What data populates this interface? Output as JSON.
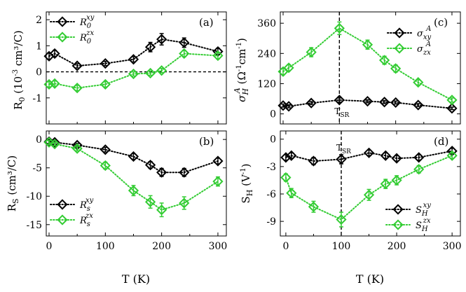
{
  "figure": {
    "x_label": "T (K)",
    "colors": {
      "black_series": "#000000",
      "green_series": "#33cc33"
    }
  },
  "chart_data": [
    {
      "id": "a",
      "type": "line",
      "panel_label": "(a)",
      "ylabel_text": "R",
      "ylabel_sub": "0",
      "ylabel_rest": " (10",
      "ylabel_sup": "-3",
      "ylabel_end": " cm³/C)",
      "xlim": [
        -5,
        315
      ],
      "ylim": [
        -2.0,
        2.3
      ],
      "xticks": [
        0,
        100,
        200,
        300
      ],
      "xtick_labels": [],
      "yticks": [
        -2,
        -1,
        0,
        1,
        2
      ],
      "ytick_labels": [
        "",
        "-1",
        "0",
        "1",
        "2"
      ],
      "zero_line": true,
      "legend": {
        "position": "top-left",
        "entries": [
          {
            "base": "R",
            "sub": "0",
            "sup": "xy"
          },
          {
            "base": "R",
            "sub": "0",
            "sup": "zx"
          }
        ]
      },
      "series": [
        {
          "name": "R0 xy",
          "color": "#000000",
          "x": [
            0,
            10,
            50,
            100,
            150,
            180,
            200,
            240,
            300
          ],
          "y": [
            0.6,
            0.7,
            0.23,
            0.32,
            0.48,
            0.95,
            1.25,
            1.12,
            0.78
          ],
          "err": [
            0.12,
            0.12,
            0.08,
            0.08,
            0.1,
            0.18,
            0.22,
            0.18,
            0.12
          ]
        },
        {
          "name": "R0 zx",
          "color": "#33cc33",
          "x": [
            0,
            10,
            50,
            100,
            150,
            180,
            200,
            240,
            300
          ],
          "y": [
            -0.48,
            -0.45,
            -0.62,
            -0.48,
            -0.08,
            -0.05,
            0.05,
            0.7,
            0.62
          ],
          "err": [
            0.1,
            0.1,
            0.1,
            0.1,
            0.08,
            0.08,
            0.08,
            0.12,
            0.12
          ]
        }
      ]
    },
    {
      "id": "b",
      "type": "line",
      "panel_label": "(b)",
      "ylabel_text": "R",
      "ylabel_sub": "S",
      "ylabel_rest": " (cm³/C)",
      "ylabel_sup": "",
      "ylabel_end": "",
      "xlim": [
        -5,
        315
      ],
      "ylim": [
        -17.0,
        1.5
      ],
      "xticks": [
        0,
        100,
        200,
        300
      ],
      "xtick_labels": [
        "0",
        "100",
        "200",
        "300"
      ],
      "yticks": [
        0,
        -5,
        -10,
        -15
      ],
      "ytick_labels": [
        "0",
        "-5",
        "-10",
        "-15"
      ],
      "zero_line": false,
      "legend": {
        "position": "bottom-left",
        "entries": [
          {
            "base": "R",
            "sub": "s",
            "sup": "xy"
          },
          {
            "base": "R",
            "sub": "s",
            "sup": "zx"
          }
        ]
      },
      "series": [
        {
          "name": "Rs xy",
          "color": "#000000",
          "x": [
            0,
            10,
            50,
            100,
            150,
            180,
            200,
            240,
            300
          ],
          "y": [
            -0.4,
            -0.5,
            -1.0,
            -1.8,
            -3.0,
            -4.5,
            -5.8,
            -5.8,
            -3.8
          ],
          "err": [
            0.3,
            0.3,
            0.3,
            0.4,
            0.5,
            0.6,
            0.7,
            0.7,
            0.5
          ]
        },
        {
          "name": "Rs zx",
          "color": "#33cc33",
          "x": [
            0,
            10,
            50,
            100,
            150,
            180,
            200,
            240,
            300
          ],
          "y": [
            -0.5,
            -0.8,
            -1.6,
            -4.6,
            -9.0,
            -11.0,
            -12.4,
            -11.2,
            -7.4
          ],
          "err": [
            0.3,
            0.3,
            0.4,
            0.6,
            0.9,
            1.1,
            1.2,
            1.1,
            0.8
          ]
        }
      ]
    },
    {
      "id": "c",
      "type": "line",
      "panel_label": "(c)",
      "ylabel_text": "σ",
      "ylabel_sub": "H",
      "ylabel_sup": "A",
      "ylabel_rest": " (Ω",
      "ylabel_sup2": "-1",
      "ylabel_end": "cm",
      "ylabel_sup3": "-1",
      "ylabel_close": ")",
      "xlim": [
        -5,
        315
      ],
      "ylim": [
        -40,
        405
      ],
      "xticks": [
        0,
        100,
        200,
        300
      ],
      "xtick_labels": [],
      "yticks": [
        0,
        120,
        240,
        360
      ],
      "ytick_labels": [
        "0",
        "120",
        "240",
        "360"
      ],
      "vline_x": 100,
      "vline_label": "T",
      "vline_sub": "SR",
      "legend": {
        "position": "top-right",
        "entries": [
          {
            "base": "σ",
            "sub": "xy",
            "sup": "A"
          },
          {
            "base": "σ",
            "sub": "zx",
            "sup": "A"
          }
        ]
      },
      "series": [
        {
          "name": "sigma xy",
          "color": "#000000",
          "x": [
            0,
            10,
            50,
            100,
            150,
            180,
            200,
            240,
            300
          ],
          "y": [
            33,
            30,
            43,
            55,
            50,
            47,
            45,
            35,
            22
          ],
          "err": [
            6,
            6,
            6,
            8,
            6,
            6,
            6,
            6,
            5
          ]
        },
        {
          "name": "sigma zx",
          "color": "#33cc33",
          "x": [
            0,
            10,
            50,
            100,
            150,
            180,
            200,
            240,
            300
          ],
          "y": [
            168,
            183,
            245,
            340,
            275,
            213,
            180,
            125,
            55
          ],
          "err": [
            12,
            12,
            18,
            25,
            18,
            16,
            14,
            10,
            8
          ]
        }
      ]
    },
    {
      "id": "d",
      "type": "line",
      "panel_label": "(d)",
      "ylabel_text": "S",
      "ylabel_sub": "H",
      "ylabel_rest": " (V",
      "ylabel_sup": "-1",
      "ylabel_end": ")",
      "xlim": [
        -10,
        315
      ],
      "ylim": [
        -10.6,
        0.9
      ],
      "xticks": [
        0,
        100,
        200,
        300
      ],
      "xtick_labels": [
        "0",
        "100",
        "200",
        "300"
      ],
      "yticks": [
        0,
        -3,
        -6,
        -9
      ],
      "ytick_labels": [
        "0",
        "-3",
        "-6",
        "-9"
      ],
      "vline_x": 100,
      "vline_label": "T",
      "vline_sub": "SR",
      "legend": {
        "position": "bottom-right",
        "entries": [
          {
            "base": "S",
            "sub": "H",
            "sup": "xy"
          },
          {
            "base": "S",
            "sub": "H",
            "sup": "zx"
          }
        ]
      },
      "series": [
        {
          "name": "SH xy",
          "color": "#000000",
          "x": [
            0,
            10,
            50,
            100,
            150,
            180,
            200,
            240,
            300
          ],
          "y": [
            -2.0,
            -1.8,
            -2.4,
            -2.2,
            -1.5,
            -1.8,
            -2.1,
            -2.0,
            -1.3
          ],
          "err": [
            0.3,
            0.3,
            0.4,
            0.5,
            0.3,
            0.3,
            0.3,
            0.3,
            0.3
          ]
        },
        {
          "name": "SH zx",
          "color": "#33cc33",
          "x": [
            0,
            10,
            50,
            100,
            150,
            180,
            200,
            240,
            300
          ],
          "y": [
            -4.2,
            -5.9,
            -7.4,
            -8.8,
            -6.1,
            -4.9,
            -4.5,
            -3.3,
            -1.8
          ],
          "err": [
            0.4,
            0.5,
            0.6,
            0.8,
            0.6,
            0.5,
            0.5,
            0.4,
            0.3
          ]
        }
      ]
    }
  ]
}
